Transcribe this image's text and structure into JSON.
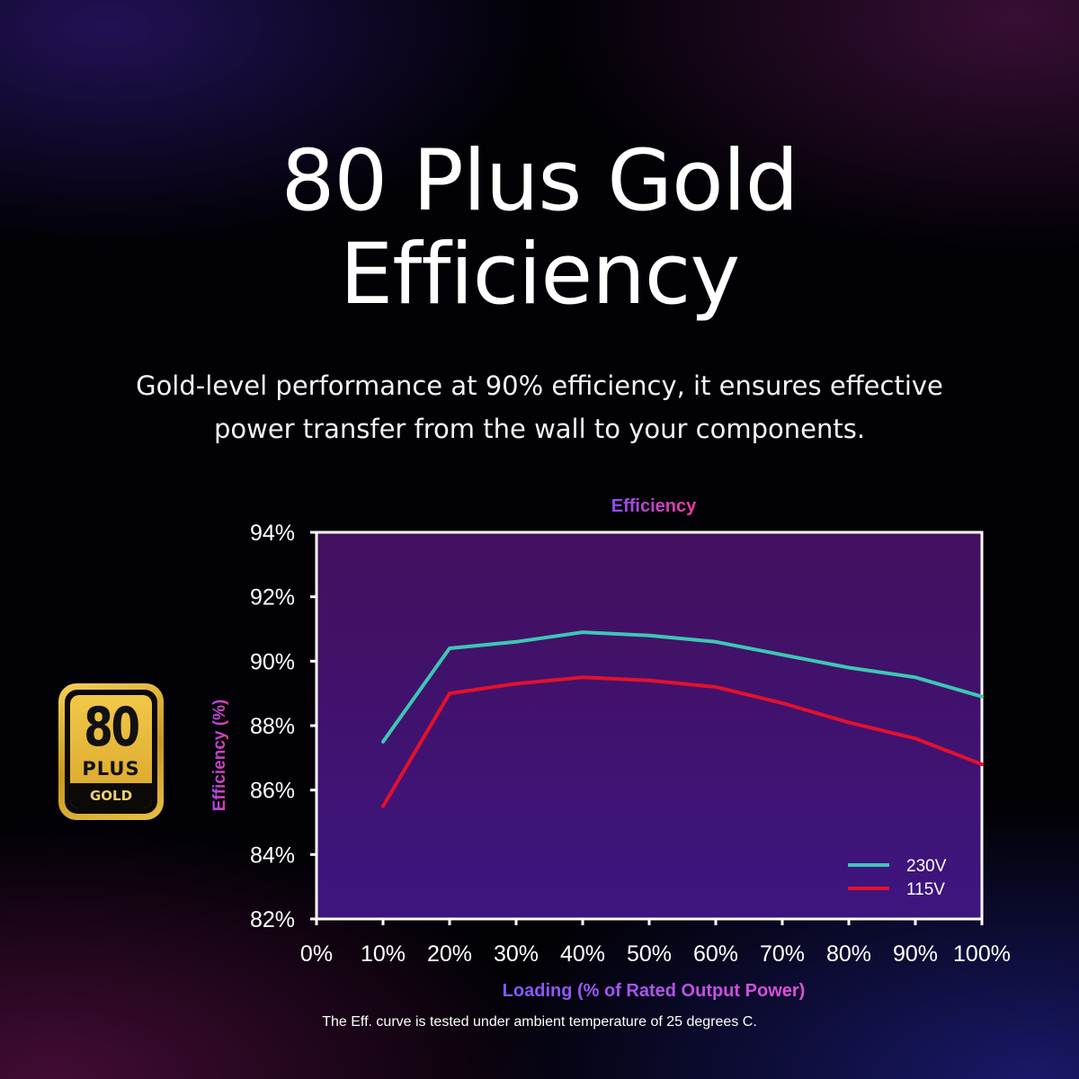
{
  "header": {
    "title_line1": "80 Plus Gold",
    "title_line2": "Efficiency",
    "subtitle_line1": "Gold-level performance at 90% efficiency, it ensures effective",
    "subtitle_line2": "power transfer from the wall to your components."
  },
  "badge": {
    "number": "80",
    "plus": "PLUS",
    "level": "GOLD"
  },
  "footnote": "The Eff. curve is tested under ambient temperature of 25 degrees C.",
  "chart_data": {
    "type": "line",
    "title": "Efficiency",
    "xlabel": "Loading (% of Rated Output Power)",
    "ylabel": "Efficiency (%)",
    "xlim": [
      0,
      100
    ],
    "ylim": [
      82,
      94
    ],
    "x_ticks": [
      0,
      10,
      20,
      30,
      40,
      50,
      60,
      70,
      80,
      90,
      100
    ],
    "x_tick_labels": [
      "0%",
      "10%",
      "20%",
      "30%",
      "40%",
      "50%",
      "60%",
      "70%",
      "80%",
      "90%",
      "100%"
    ],
    "y_ticks": [
      82,
      84,
      86,
      88,
      90,
      92,
      94
    ],
    "y_tick_labels": [
      "82%",
      "84%",
      "86%",
      "88%",
      "90%",
      "92%",
      "94%"
    ],
    "legend_position": "bottom-right",
    "grid": false,
    "x": [
      10,
      20,
      30,
      40,
      50,
      60,
      70,
      80,
      90,
      100
    ],
    "series": [
      {
        "name": "230V",
        "color": "#3cc7b4",
        "values": [
          87.5,
          90.4,
          90.6,
          90.9,
          90.8,
          90.6,
          90.2,
          89.8,
          89.5,
          88.9
        ]
      },
      {
        "name": "115V",
        "color": "#e3102e",
        "values": [
          85.5,
          89.0,
          89.3,
          89.5,
          89.4,
          89.2,
          88.7,
          88.1,
          87.6,
          86.8
        ]
      }
    ],
    "colors": {
      "plot_background_top": "#43105e",
      "plot_background_bottom": "#3e1580",
      "axis": "#ffffff",
      "title_gradient_start": "#8f4df5",
      "title_gradient_end": "#f23b9a"
    }
  }
}
